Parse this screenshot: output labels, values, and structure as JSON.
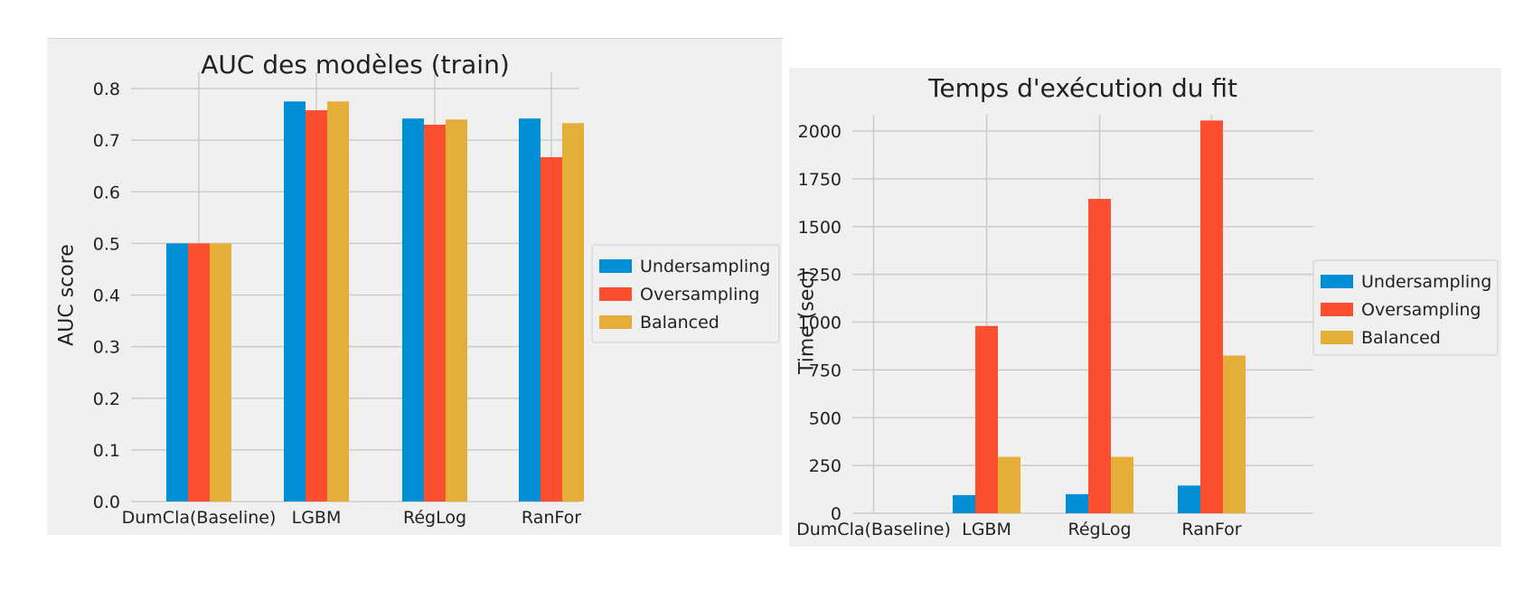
{
  "colors": {
    "panel_bg": "#f0f0f0",
    "grid": "#cbcbcb",
    "text": "#222222",
    "legend_bg": "#f0f0f0",
    "legend_border": "#cccccc"
  },
  "chart_data": [
    {
      "type": "bar",
      "title": "AUC des modèles (train)",
      "xlabel": "",
      "ylabel": "AUC score",
      "categories": [
        "DumCla(Baseline)",
        "LGBM",
        "RégLog",
        "RanFor"
      ],
      "ylim": [
        0,
        0.8
      ],
      "yticks": [
        0.0,
        0.1,
        0.2,
        0.3,
        0.4,
        0.5,
        0.6,
        0.7,
        0.8
      ],
      "ytick_labels": [
        "0.0",
        "0.1",
        "0.2",
        "0.3",
        "0.4",
        "0.5",
        "0.6",
        "0.7",
        "0.8"
      ],
      "grid": true,
      "legend_position": "right",
      "series": [
        {
          "name": "Undersampling",
          "color": "#008fd5",
          "values": [
            0.5,
            0.775,
            0.742,
            0.742
          ]
        },
        {
          "name": "Oversampling",
          "color": "#fc4f30",
          "values": [
            0.5,
            0.758,
            0.73,
            0.667
          ]
        },
        {
          "name": "Balanced",
          "color": "#e5ae38",
          "values": [
            0.5,
            0.775,
            0.74,
            0.733
          ]
        }
      ]
    },
    {
      "type": "bar",
      "title": "Temps d'exécution du fit",
      "xlabel": "",
      "ylabel": "Time (sec)",
      "categories": [
        "DumCla(Baseline)",
        "LGBM",
        "RégLog",
        "RanFor"
      ],
      "ylim": [
        0,
        2000
      ],
      "yticks": [
        0,
        250,
        500,
        750,
        1000,
        1250,
        1500,
        1750,
        2000
      ],
      "ytick_labels": [
        "0",
        "250",
        "500",
        "750",
        "1000",
        "1250",
        "1500",
        "1750",
        "2000"
      ],
      "grid": true,
      "legend_position": "right",
      "series": [
        {
          "name": "Undersampling",
          "color": "#008fd5",
          "values": [
            0,
            95,
            100,
            145
          ]
        },
        {
          "name": "Oversampling",
          "color": "#fc4f30",
          "values": [
            0,
            980,
            1645,
            2055
          ]
        },
        {
          "name": "Balanced",
          "color": "#e5ae38",
          "values": [
            0,
            295,
            295,
            825
          ]
        }
      ]
    }
  ]
}
